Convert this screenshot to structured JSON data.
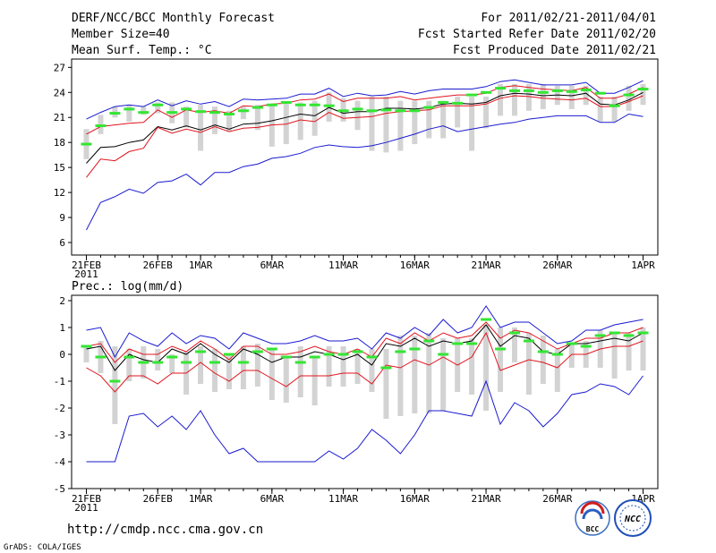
{
  "header": {
    "left": [
      "DERF/NCC/BCC Monthly Forecast",
      "Member Size=40",
      "Mean Surf. Temp.: °C"
    ],
    "right": [
      "For 2011/02/21-2011/04/01",
      "Fcst Started Refer Date 2011/02/20",
      "Fcst Produced Date 2011/02/21"
    ]
  },
  "footer": {
    "url": "http://cmdp.ncc.cma.gov.cn",
    "credit": "GrADS: COLA/IGES",
    "logo_left_text": "BCC",
    "logo_right_text": "NCC"
  },
  "colors": {
    "ensemble_mean": "#000000",
    "percentile_25_75": "#e0141e",
    "min_max": "#1a1ad0",
    "member_range_bar": "#d3d3d3",
    "observed_marker": "#33e633"
  },
  "chart_data": [
    {
      "type": "line",
      "title": "Mean Surf. Temp.: °C",
      "xlabel": "",
      "ylabel": "",
      "x": [
        1,
        2,
        3,
        4,
        5,
        6,
        7,
        8,
        9,
        10,
        11,
        12,
        13,
        14,
        15,
        16,
        17,
        18,
        19,
        20,
        21,
        22,
        23,
        24,
        25,
        26,
        27,
        28,
        29,
        30,
        31,
        32,
        33,
        34,
        35,
        36,
        37,
        38,
        39,
        40
      ],
      "x_ticks": [
        {
          "day": 1,
          "label": "21FEB",
          "sub": "2011"
        },
        {
          "day": 6,
          "label": "26FEB"
        },
        {
          "day": 9,
          "label": "1MAR"
        },
        {
          "day": 14,
          "label": "6MAR"
        },
        {
          "day": 19,
          "label": "11MAR"
        },
        {
          "day": 24,
          "label": "16MAR"
        },
        {
          "day": 29,
          "label": "21MAR"
        },
        {
          "day": 34,
          "label": "26MAR"
        },
        {
          "day": 40,
          "label": "1APR"
        }
      ],
      "ylim": [
        4.5,
        28
      ],
      "y_ticks": [
        6,
        9,
        12,
        15,
        18,
        21,
        24,
        27
      ],
      "series": [
        {
          "name": "max",
          "color_key": "min_max",
          "values": [
            20.8,
            21.6,
            22.3,
            22.5,
            22.3,
            23.1,
            22.4,
            23,
            22.6,
            22.9,
            22.3,
            23.2,
            23.1,
            23.2,
            23.3,
            23.8,
            23.8,
            24.5,
            23.5,
            23.9,
            23.6,
            23.7,
            24.1,
            23.8,
            24.2,
            24.4,
            24.4,
            24.4,
            24.7,
            25.3,
            25.5,
            25.2,
            24.9,
            24.9,
            24.9,
            25.2,
            23.9,
            23.9,
            24.6,
            25.4
          ]
        },
        {
          "name": "p75",
          "color_key": "percentile_25_75",
          "values": [
            19,
            19.9,
            20.1,
            20.3,
            20.4,
            21.9,
            21,
            21.9,
            21.6,
            21.8,
            21.5,
            22.4,
            22.3,
            22.6,
            22.7,
            23.1,
            23.2,
            23.8,
            22.9,
            23.3,
            23.3,
            23.3,
            23.5,
            23.1,
            23.3,
            23.5,
            23.7,
            23.7,
            23.9,
            24.6,
            24.8,
            24.6,
            24.4,
            24.3,
            24.2,
            24.6,
            23.3,
            23.3,
            23.8,
            24.6
          ]
        },
        {
          "name": "mean",
          "color_key": "ensemble_mean",
          "values": [
            15.5,
            17.4,
            17.5,
            18,
            18.3,
            19.9,
            19.5,
            20,
            19.5,
            20.1,
            19.6,
            20.2,
            20.3,
            20.6,
            21,
            21.4,
            21.2,
            22.2,
            21.5,
            21.7,
            21.7,
            22.1,
            22.1,
            22,
            22.2,
            22.6,
            22.7,
            22.6,
            22.8,
            23.6,
            23.9,
            23.8,
            23.6,
            23.7,
            23.6,
            23.9,
            22.6,
            22.5,
            23.1,
            24
          ]
        },
        {
          "name": "p25",
          "color_key": "percentile_25_75",
          "values": [
            13.8,
            16,
            15.8,
            16.9,
            17.3,
            19.8,
            19.1,
            19.6,
            19.2,
            19.9,
            19.3,
            19.7,
            19.8,
            20.1,
            20.2,
            20.7,
            20.5,
            21.6,
            20.9,
            21,
            21.1,
            21.5,
            21.7,
            21.8,
            21.9,
            22.4,
            22.4,
            22.4,
            22.6,
            23.3,
            23.6,
            23.5,
            23.3,
            23.2,
            23.1,
            23.3,
            22.3,
            22.3,
            22.9,
            23.6
          ]
        },
        {
          "name": "min",
          "color_key": "min_max",
          "values": [
            7.5,
            10.8,
            11.5,
            12.4,
            11.9,
            13.2,
            13.4,
            14.2,
            12.9,
            14.4,
            14.4,
            15.1,
            15.4,
            16.1,
            16.3,
            16.7,
            17.4,
            17.7,
            17.5,
            17.4,
            17.6,
            18,
            18.5,
            19,
            19.6,
            20,
            19.3,
            19.6,
            19.9,
            20.2,
            20.4,
            20.8,
            21,
            21.2,
            21.2,
            21.2,
            20.4,
            20.4,
            21.4,
            21.1
          ]
        }
      ],
      "observed": [
        17.8,
        20,
        21.5,
        22,
        21.6,
        22.5,
        21.6,
        22,
        21.7,
        21.6,
        21.4,
        21.8,
        22.2,
        22.5,
        22.8,
        22.5,
        22.5,
        22.4,
        21.8,
        22,
        21.8,
        21.9,
        21.8,
        21.8,
        22.2,
        22.8,
        22.7,
        23.7,
        24,
        24.5,
        24.2,
        24.2,
        24,
        24.2,
        24.1,
        24.3,
        23.9,
        22.4,
        23.7,
        24.4
      ],
      "range_bars": [
        [
          16,
          19.6
        ],
        [
          19,
          21.3
        ],
        [
          21,
          22.3
        ],
        [
          20.5,
          22.5
        ],
        [
          21.3,
          22.3
        ],
        [
          21.5,
          22.8
        ],
        [
          20.3,
          22.8
        ],
        [
          19.8,
          22.3
        ],
        [
          17,
          22.5
        ],
        [
          19,
          22.3
        ],
        [
          19.3,
          21.8
        ],
        [
          20.8,
          22.3
        ],
        [
          19.5,
          22.5
        ],
        [
          17.5,
          22.5
        ],
        [
          17.8,
          22.8
        ],
        [
          18.3,
          22.8
        ],
        [
          18.8,
          23
        ],
        [
          20.5,
          24
        ],
        [
          20.5,
          23.3
        ],
        [
          19.5,
          23
        ],
        [
          17,
          23.5
        ],
        [
          16.8,
          23.5
        ],
        [
          17,
          23
        ],
        [
          17.8,
          23
        ],
        [
          18.5,
          23
        ],
        [
          18.5,
          23
        ],
        [
          19.8,
          23.5
        ],
        [
          17,
          23.5
        ],
        [
          19.7,
          23.5
        ],
        [
          21.2,
          25
        ],
        [
          21.2,
          25
        ],
        [
          21.8,
          25
        ],
        [
          22,
          25
        ],
        [
          22.5,
          24.8
        ],
        [
          22,
          24.8
        ],
        [
          22.5,
          24.8
        ],
        [
          20.5,
          23.5
        ],
        [
          20.5,
          23.5
        ],
        [
          21.8,
          24.8
        ],
        [
          22.5,
          25
        ]
      ]
    },
    {
      "type": "line",
      "title": "Prec.: log(mm/d)",
      "xlabel": "",
      "ylabel": "",
      "x": [
        1,
        2,
        3,
        4,
        5,
        6,
        7,
        8,
        9,
        10,
        11,
        12,
        13,
        14,
        15,
        16,
        17,
        18,
        19,
        20,
        21,
        22,
        23,
        24,
        25,
        26,
        27,
        28,
        29,
        30,
        31,
        32,
        33,
        34,
        35,
        36,
        37,
        38,
        39,
        40
      ],
      "x_ticks": [
        {
          "day": 1,
          "label": "21FEB",
          "sub": "2011"
        },
        {
          "day": 6,
          "label": "26FEB"
        },
        {
          "day": 9,
          "label": "1MAR"
        },
        {
          "day": 14,
          "label": "6MAR"
        },
        {
          "day": 19,
          "label": "11MAR"
        },
        {
          "day": 24,
          "label": "16MAR"
        },
        {
          "day": 29,
          "label": "21MAR"
        },
        {
          "day": 34,
          "label": "26MAR"
        },
        {
          "day": 40,
          "label": "1APR"
        }
      ],
      "ylim": [
        -5,
        2.2
      ],
      "y_ticks": [
        -5,
        -4,
        -3,
        -2,
        -1,
        0,
        1,
        2
      ],
      "series": [
        {
          "name": "max",
          "color_key": "min_max",
          "values": [
            0.9,
            1,
            -0.1,
            0.8,
            0.5,
            0.3,
            0.8,
            0.4,
            0.7,
            0.6,
            0.2,
            0.8,
            0.6,
            0.4,
            0.4,
            0.5,
            0.7,
            0.5,
            0.5,
            0.6,
            0.2,
            0.8,
            0.6,
            1,
            0.7,
            1.3,
            0.8,
            1,
            1.8,
            1,
            1.2,
            1.2,
            0.8,
            0.4,
            0.5,
            0.9,
            0.9,
            1.1,
            1.2,
            1.3
          ]
        },
        {
          "name": "p75",
          "color_key": "percentile_25_75",
          "values": [
            0.3,
            0.4,
            -0.3,
            0.2,
            0,
            0,
            0.3,
            0.1,
            0.5,
            0.2,
            -0.2,
            0.3,
            0.3,
            0,
            0,
            0.1,
            0.3,
            0.1,
            0,
            0.2,
            -0.1,
            0.6,
            0.4,
            0.8,
            0.5,
            0.8,
            0.6,
            0.7,
            1.2,
            0.6,
            0.9,
            0.8,
            0.5,
            0.2,
            0.4,
            0.6,
            0.6,
            0.8,
            0.8,
            1
          ]
        },
        {
          "name": "mean",
          "color_key": "ensemble_mean",
          "values": [
            0.2,
            0.3,
            -0.6,
            0,
            -0.2,
            -0.3,
            0.2,
            0,
            0.4,
            0,
            -0.3,
            0.2,
            0,
            -0.3,
            -0.1,
            -0.1,
            0.1,
            0,
            -0.2,
            0,
            -0.4,
            0.4,
            0.3,
            0.6,
            0.3,
            0.5,
            0.4,
            0.5,
            1.1,
            0.3,
            0.7,
            0.6,
            0.1,
            0,
            0.4,
            0.4,
            0.5,
            0.6,
            0.5,
            0.8
          ]
        },
        {
          "name": "p25",
          "color_key": "percentile_25_75",
          "values": [
            -0.5,
            -0.8,
            -1.4,
            -0.8,
            -0.8,
            -1.1,
            -0.7,
            -0.7,
            -0.3,
            -0.7,
            -1,
            -0.6,
            -0.6,
            -0.9,
            -1.2,
            -0.8,
            -0.8,
            -0.8,
            -0.7,
            -0.7,
            -1.1,
            -0.4,
            -0.5,
            -0.2,
            -0.4,
            -0.1,
            -0.4,
            -0.1,
            0.8,
            -0.6,
            -0.4,
            -0.2,
            -0.3,
            -0.5,
            0,
            0,
            0.2,
            0.3,
            0.3,
            0.5
          ]
        },
        {
          "name": "min",
          "color_key": "min_max",
          "values": [
            -4,
            -4,
            -4,
            -2.3,
            -2.2,
            -2.7,
            -2.3,
            -2.8,
            -2.1,
            -3,
            -3.7,
            -3.5,
            -4,
            -4,
            -4,
            -4,
            -4,
            -3.6,
            -3.9,
            -3.5,
            -2.8,
            -3.2,
            -3.7,
            -3,
            -2.1,
            -2.1,
            -2.2,
            -2.3,
            -1,
            -2.6,
            -1.8,
            -2.1,
            -2.7,
            -2.2,
            -1.5,
            -1.4,
            -1.1,
            -1.2,
            -1.5,
            -0.8
          ]
        }
      ],
      "observed": [
        0.3,
        -0.1,
        -1,
        -0.1,
        -0.3,
        -0.3,
        -0.1,
        -0.3,
        0.1,
        -0.3,
        0,
        -0.3,
        0.1,
        0.2,
        -0.1,
        -0.3,
        -0.1,
        0,
        0,
        0.1,
        -0.1,
        -0.5,
        0.1,
        0.2,
        0.5,
        0,
        0.4,
        0.4,
        1.3,
        0.2,
        0.8,
        0.5,
        0.1,
        0,
        0.4,
        0.3,
        0.7,
        0.8,
        0.7,
        0.8
      ],
      "range_bars": [
        [
          -0.3,
          0.3
        ],
        [
          -0.7,
          0.5
        ],
        [
          -2.6,
          0.3
        ],
        [
          -1,
          0.2
        ],
        [
          -0.9,
          0.3
        ],
        [
          -0.6,
          0.2
        ],
        [
          -0.7,
          0
        ],
        [
          -1.5,
          0.1
        ],
        [
          -1.1,
          0.3
        ],
        [
          -1.4,
          0.2
        ],
        [
          -1.3,
          0
        ],
        [
          -1.3,
          0.3
        ],
        [
          -1.2,
          0.4
        ],
        [
          -1.7,
          0.2
        ],
        [
          -1.8,
          -0.1
        ],
        [
          -1.6,
          0.3
        ],
        [
          -1.9,
          -0.1
        ],
        [
          -1.2,
          0.3
        ],
        [
          -1.2,
          0.3
        ],
        [
          -1.1,
          0.2
        ],
        [
          -1.4,
          0.2
        ],
        [
          -2.4,
          0.2
        ],
        [
          -2.3,
          0.7
        ],
        [
          -2.2,
          0.7
        ],
        [
          -2.2,
          0.8
        ],
        [
          -2.1,
          0.6
        ],
        [
          -1.4,
          0.6
        ],
        [
          -1.5,
          0.6
        ],
        [
          -2.1,
          1.1
        ],
        [
          -1.4,
          1
        ],
        [
          -0.3,
          1
        ],
        [
          -1.5,
          0.8
        ],
        [
          -1.1,
          0.7
        ],
        [
          -1.4,
          0.2
        ],
        [
          -0.5,
          0.4
        ],
        [
          -0.5,
          0.5
        ],
        [
          -0.5,
          0.9
        ],
        [
          -0.9,
          0.8
        ],
        [
          -0.6,
          0.8
        ],
        [
          -0.6,
          1
        ]
      ]
    }
  ]
}
